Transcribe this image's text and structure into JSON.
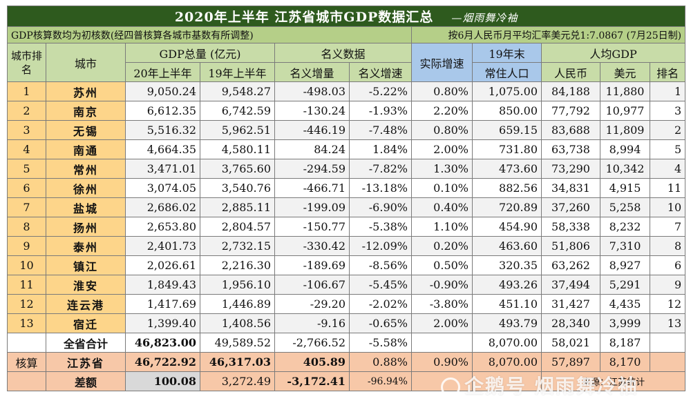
{
  "title": "2020年上半年 江苏省城市GDP数据汇总",
  "author": "—烟雨舞冷袖",
  "note_left": "GDP核算数均为初核数(经四普核算各城市基数有所调整)",
  "note_right": "按6月人民币月平均汇率美元兑1:7.0867 (7月25日制)",
  "headers": {
    "rank": "城市排名",
    "city": "城市",
    "gdp_total": "GDP总量 (亿元)",
    "h2020": "20年上半年",
    "h2019": "19年上半年",
    "nominal": "名义数据",
    "nominal_inc": "名义增量",
    "nominal_rate": "名义增速",
    "real_rate": "实际增速",
    "year_end": "19年末",
    "population": "常住人口",
    "per_capita": "人均GDP",
    "rmb": "人民币",
    "usd": "美元",
    "pc_rank": "排名"
  },
  "rows": [
    {
      "rank": "1",
      "city": "苏州",
      "g20": "9,050.24",
      "g19": "9,548.27",
      "inc": "-498.03",
      "rate": "-5.22%",
      "real": "0.80%",
      "pop": "1,075.00",
      "rmb": "84,188",
      "usd": "11,880",
      "prank": "1"
    },
    {
      "rank": "2",
      "city": "南京",
      "g20": "6,612.35",
      "g19": "6,742.59",
      "inc": "-130.24",
      "rate": "-1.93%",
      "real": "2.20%",
      "pop": "850.00",
      "rmb": "77,792",
      "usd": "10,977",
      "prank": "3"
    },
    {
      "rank": "3",
      "city": "无锡",
      "g20": "5,516.32",
      "g19": "5,962.51",
      "inc": "-446.19",
      "rate": "-7.48%",
      "real": "0.80%",
      "pop": "659.15",
      "rmb": "83,688",
      "usd": "11,809",
      "prank": "2"
    },
    {
      "rank": "4",
      "city": "南通",
      "g20": "4,664.35",
      "g19": "4,580.11",
      "inc": "84.24",
      "rate": "1.84%",
      "real": "2.00%",
      "pop": "731.80",
      "rmb": "63,738",
      "usd": "8,994",
      "prank": "5"
    },
    {
      "rank": "5",
      "city": "常州",
      "g20": "3,471.01",
      "g19": "3,765.60",
      "inc": "-294.59",
      "rate": "-7.82%",
      "real": "1.30%",
      "pop": "473.60",
      "rmb": "73,290",
      "usd": "10,342",
      "prank": "4"
    },
    {
      "rank": "6",
      "city": "徐州",
      "g20": "3,074.05",
      "g19": "3,540.76",
      "inc": "-466.71",
      "rate": "-13.18%",
      "real": "0.10%",
      "pop": "882.56",
      "rmb": "34,831",
      "usd": "4,915",
      "prank": "11"
    },
    {
      "rank": "7",
      "city": "盐城",
      "g20": "2,686.02",
      "g19": "2,885.11",
      "inc": "-199.09",
      "rate": "-6.90%",
      "real": "0.40%",
      "pop": "720.89",
      "rmb": "37,260",
      "usd": "5,258",
      "prank": "10"
    },
    {
      "rank": "8",
      "city": "扬州",
      "g20": "2,653.80",
      "g19": "2,804.57",
      "inc": "-150.77",
      "rate": "-5.38%",
      "real": "1.10%",
      "pop": "454.90",
      "rmb": "58,338",
      "usd": "8,232",
      "prank": "7"
    },
    {
      "rank": "9",
      "city": "泰州",
      "g20": "2,401.73",
      "g19": "2,732.15",
      "inc": "-330.42",
      "rate": "-12.09%",
      "real": "0.20%",
      "pop": "463.60",
      "rmb": "51,806",
      "usd": "7,310",
      "prank": "8"
    },
    {
      "rank": "10",
      "city": "镇江",
      "g20": "2,026.61",
      "g19": "2,216.30",
      "inc": "-189.69",
      "rate": "-8.56%",
      "real": "0.50%",
      "pop": "320.35",
      "rmb": "63,262",
      "usd": "8,927",
      "prank": "6"
    },
    {
      "rank": "11",
      "city": "淮安",
      "g20": "1,849.43",
      "g19": "1,956.10",
      "inc": "-106.67",
      "rate": "-5.45%",
      "real": "-0.90%",
      "pop": "493.26",
      "rmb": "37,494",
      "usd": "5,291",
      "prank": "9"
    },
    {
      "rank": "12",
      "city": "连云港",
      "g20": "1,417.69",
      "g19": "1,446.89",
      "inc": "-29.20",
      "rate": "-2.02%",
      "real": "-3.80%",
      "pop": "451.10",
      "rmb": "31,427",
      "usd": "4,435",
      "prank": "12"
    },
    {
      "rank": "13",
      "city": "宿迁",
      "g20": "1,399.40",
      "g19": "1,408.56",
      "inc": "-9.16",
      "rate": "-0.65%",
      "real": "2.00%",
      "pop": "493.79",
      "rmb": "28,340",
      "usd": "3,999",
      "prank": "13"
    }
  ],
  "total": {
    "label": "全省合计",
    "g20": "46,823.00",
    "g19": "49,589.52",
    "inc": "-2,766.52",
    "rate": "-5.58%",
    "pop": "8,070.00",
    "rmb": "58,021",
    "usd": "8,187"
  },
  "province": {
    "rank": "核算",
    "city": "江苏省",
    "g20": "46,722.92",
    "g19": "46,317.03",
    "inc": "405.89",
    "rate": "0.88%",
    "real": "0.90%",
    "pop": "8,070.00",
    "rmb": "57,897",
    "usd": "8,170"
  },
  "diff": {
    "label": "差额",
    "g20": "100.08",
    "g19": "3,272.49",
    "inc": "-3,172.41",
    "rate": "-96.94%"
  },
  "diff_source": "来源：江苏统计",
  "watermark": "企鹅号 烟雨舞冷袖"
}
